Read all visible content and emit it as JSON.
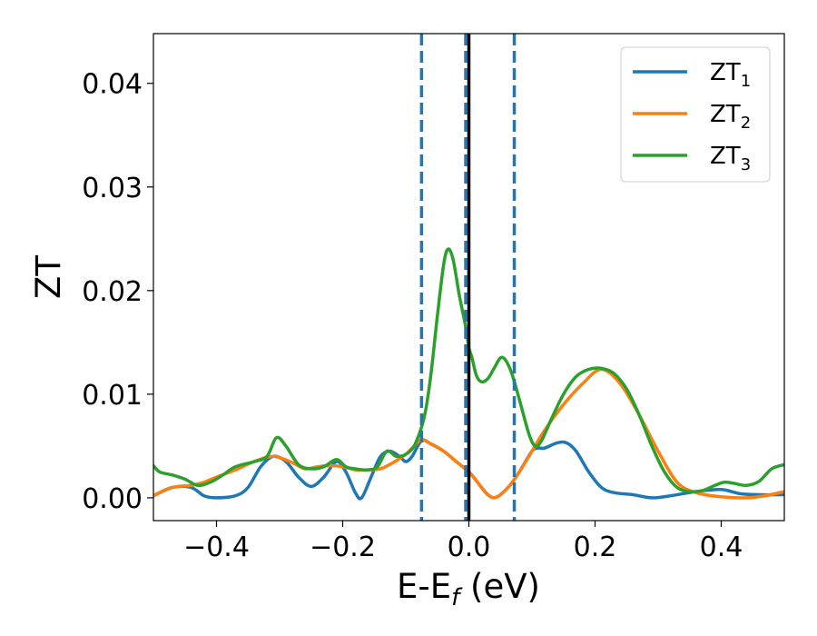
{
  "chart_data": {
    "type": "line",
    "title": "",
    "xlabel": "E-E",
    "xlabel_sub": "f",
    "xlabel_unit": " (eV)",
    "ylabel": "ZT",
    "xlim": [
      -0.5,
      0.5
    ],
    "ylim": [
      -0.0022,
      0.0448
    ],
    "x_ticks": [
      -0.4,
      -0.2,
      0.0,
      0.2,
      0.4
    ],
    "x_tick_labels": [
      "−0.4",
      "−0.2",
      "0.0",
      "0.2",
      "0.4"
    ],
    "y_ticks": [
      0.0,
      0.01,
      0.02,
      0.03,
      0.04
    ],
    "y_tick_labels": [
      "0.00",
      "0.01",
      "0.02",
      "0.03",
      "0.04"
    ],
    "grid": false,
    "legend": "top-right",
    "vlines": [
      {
        "x": -0.075,
        "style": "dashed",
        "color": "#1f77b4"
      },
      {
        "x": -0.005,
        "style": "dashed",
        "color": "#1f77b4"
      },
      {
        "x": 0.072,
        "style": "dashed",
        "color": "#1f77b4"
      },
      {
        "x": 0.0,
        "style": "solid",
        "color": "#000000"
      }
    ],
    "series": [
      {
        "name": "ZT",
        "name_sub": "1",
        "color": "#1f77b4",
        "points": [
          [
            -0.5,
            0.0002
          ],
          [
            -0.47,
            0.001
          ],
          [
            -0.44,
            0.001
          ],
          [
            -0.42,
            0.0002
          ],
          [
            -0.4,
            0.0
          ],
          [
            -0.37,
            0.0002
          ],
          [
            -0.35,
            0.001
          ],
          [
            -0.33,
            0.003
          ],
          [
            -0.31,
            0.004
          ],
          [
            -0.29,
            0.0035
          ],
          [
            -0.27,
            0.002
          ],
          [
            -0.25,
            0.0011
          ],
          [
            -0.23,
            0.002
          ],
          [
            -0.21,
            0.0035
          ],
          [
            -0.195,
            0.0025
          ],
          [
            -0.18,
            0.0005
          ],
          [
            -0.17,
            0.0
          ],
          [
            -0.155,
            0.002
          ],
          [
            -0.14,
            0.004
          ],
          [
            -0.125,
            0.0045
          ],
          [
            -0.11,
            0.004
          ],
          [
            -0.1,
            0.0035
          ],
          [
            -0.09,
            0.004
          ],
          [
            -0.075,
            0.0055
          ],
          [
            -0.06,
            0.0052
          ],
          [
            -0.04,
            0.0045
          ],
          [
            -0.02,
            0.0035
          ],
          [
            0.0,
            0.0025
          ],
          [
            0.01,
            0.0018
          ],
          [
            0.02,
            0.001
          ],
          [
            0.03,
            0.0003
          ],
          [
            0.04,
            0.0
          ],
          [
            0.05,
            0.0003
          ],
          [
            0.065,
            0.0012
          ],
          [
            0.08,
            0.0025
          ],
          [
            0.1,
            0.0045
          ],
          [
            0.11,
            0.0048
          ],
          [
            0.12,
            0.0048
          ],
          [
            0.14,
            0.0053
          ],
          [
            0.155,
            0.0053
          ],
          [
            0.17,
            0.0045
          ],
          [
            0.19,
            0.0025
          ],
          [
            0.21,
            0.001
          ],
          [
            0.23,
            0.0005
          ],
          [
            0.26,
            0.0003
          ],
          [
            0.29,
            0.0
          ],
          [
            0.32,
            0.0002
          ],
          [
            0.36,
            0.0006
          ],
          [
            0.4,
            0.0008
          ],
          [
            0.43,
            0.0004
          ],
          [
            0.46,
            0.0003
          ],
          [
            0.5,
            0.0003
          ]
        ]
      },
      {
        "name": "ZT",
        "name_sub": "2",
        "color": "#ff7f0e",
        "points": [
          [
            -0.5,
            0.0002
          ],
          [
            -0.47,
            0.001
          ],
          [
            -0.44,
            0.0012
          ],
          [
            -0.42,
            0.0015
          ],
          [
            -0.4,
            0.002
          ],
          [
            -0.37,
            0.0027
          ],
          [
            -0.34,
            0.0035
          ],
          [
            -0.31,
            0.004
          ],
          [
            -0.28,
            0.0034
          ],
          [
            -0.26,
            0.0028
          ],
          [
            -0.24,
            0.003
          ],
          [
            -0.22,
            0.0031
          ],
          [
            -0.2,
            0.003
          ],
          [
            -0.18,
            0.0027
          ],
          [
            -0.16,
            0.0027
          ],
          [
            -0.14,
            0.0028
          ],
          [
            -0.12,
            0.0034
          ],
          [
            -0.1,
            0.0042
          ],
          [
            -0.09,
            0.0048
          ],
          [
            -0.075,
            0.0056
          ],
          [
            -0.06,
            0.0052
          ],
          [
            -0.04,
            0.0045
          ],
          [
            -0.02,
            0.0035
          ],
          [
            0.0,
            0.0025
          ],
          [
            0.01,
            0.0018
          ],
          [
            0.02,
            0.001
          ],
          [
            0.03,
            0.0003
          ],
          [
            0.04,
            0.0
          ],
          [
            0.05,
            0.0003
          ],
          [
            0.065,
            0.0012
          ],
          [
            0.08,
            0.0025
          ],
          [
            0.1,
            0.0045
          ],
          [
            0.12,
            0.0065
          ],
          [
            0.15,
            0.009
          ],
          [
            0.18,
            0.011
          ],
          [
            0.21,
            0.0124
          ],
          [
            0.24,
            0.011
          ],
          [
            0.27,
            0.008
          ],
          [
            0.3,
            0.0045
          ],
          [
            0.33,
            0.0015
          ],
          [
            0.36,
            0.0005
          ],
          [
            0.4,
            0.0001
          ],
          [
            0.44,
            0.0
          ],
          [
            0.47,
            0.0002
          ],
          [
            0.5,
            0.0006
          ]
        ]
      },
      {
        "name": "ZT",
        "name_sub": "3",
        "color": "#2ca02c",
        "points": [
          [
            -0.5,
            0.0031
          ],
          [
            -0.49,
            0.0025
          ],
          [
            -0.47,
            0.0022
          ],
          [
            -0.45,
            0.0018
          ],
          [
            -0.43,
            0.0012
          ],
          [
            -0.41,
            0.0015
          ],
          [
            -0.39,
            0.0022
          ],
          [
            -0.37,
            0.003
          ],
          [
            -0.34,
            0.0035
          ],
          [
            -0.32,
            0.004
          ],
          [
            -0.305,
            0.0058
          ],
          [
            -0.29,
            0.005
          ],
          [
            -0.27,
            0.0032
          ],
          [
            -0.25,
            0.0028
          ],
          [
            -0.23,
            0.003
          ],
          [
            -0.21,
            0.0037
          ],
          [
            -0.195,
            0.003
          ],
          [
            -0.18,
            0.0028
          ],
          [
            -0.16,
            0.0027
          ],
          [
            -0.145,
            0.003
          ],
          [
            -0.13,
            0.0045
          ],
          [
            -0.115,
            0.004
          ],
          [
            -0.1,
            0.0042
          ],
          [
            -0.085,
            0.0052
          ],
          [
            -0.07,
            0.008
          ],
          [
            -0.06,
            0.012
          ],
          [
            -0.05,
            0.0175
          ],
          [
            -0.04,
            0.0225
          ],
          [
            -0.033,
            0.024
          ],
          [
            -0.025,
            0.023
          ],
          [
            -0.015,
            0.0195
          ],
          [
            -0.005,
            0.0165
          ],
          [
            0.0,
            0.0145
          ],
          [
            0.005,
            0.0135
          ],
          [
            0.012,
            0.0118
          ],
          [
            0.02,
            0.0112
          ],
          [
            0.03,
            0.0115
          ],
          [
            0.04,
            0.0125
          ],
          [
            0.05,
            0.0135
          ],
          [
            0.058,
            0.0133
          ],
          [
            0.068,
            0.012
          ],
          [
            0.08,
            0.0095
          ],
          [
            0.095,
            0.0062
          ],
          [
            0.105,
            0.005
          ],
          [
            0.115,
            0.0055
          ],
          [
            0.13,
            0.0075
          ],
          [
            0.15,
            0.01
          ],
          [
            0.17,
            0.0117
          ],
          [
            0.19,
            0.0124
          ],
          [
            0.21,
            0.0125
          ],
          [
            0.23,
            0.012
          ],
          [
            0.25,
            0.0105
          ],
          [
            0.27,
            0.008
          ],
          [
            0.29,
            0.005
          ],
          [
            0.31,
            0.0025
          ],
          [
            0.33,
            0.001
          ],
          [
            0.35,
            0.0006
          ],
          [
            0.37,
            0.0007
          ],
          [
            0.39,
            0.0012
          ],
          [
            0.405,
            0.0015
          ],
          [
            0.42,
            0.0014
          ],
          [
            0.44,
            0.0012
          ],
          [
            0.46,
            0.0016
          ],
          [
            0.48,
            0.0028
          ],
          [
            0.5,
            0.0032
          ]
        ]
      }
    ]
  }
}
